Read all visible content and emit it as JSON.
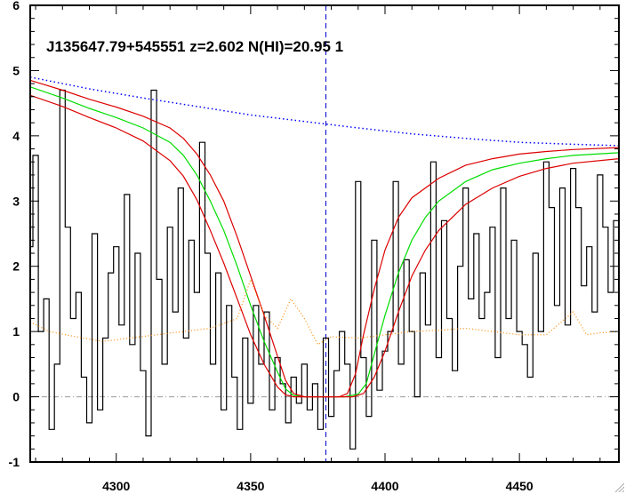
{
  "chart_data": {
    "type": "line",
    "title": "J135647.79+545551 z=2.602 N(HI)=20.95 1",
    "xlabel": "",
    "ylabel": "",
    "xlim": [
      4268,
      4487
    ],
    "ylim": [
      -1,
      6
    ],
    "x_ticks": [
      4300,
      4350,
      4400,
      4450
    ],
    "y_ticks": [
      -1,
      0,
      1,
      2,
      3,
      4,
      5,
      6
    ],
    "grid": false,
    "colors": {
      "flux": "#000000",
      "model": "#00dd00",
      "model_bounds": "#dd0000",
      "continuum": "#0000ff",
      "error": "#ff8800",
      "zero_line": "#999999",
      "center_line": "#0000cc"
    },
    "vertical_line_x": 4378,
    "zero_level": 0,
    "series": [
      {
        "style": "step",
        "values": [
          [
            4268,
            2.3
          ],
          [
            4270,
            3.7
          ],
          [
            4272,
            1.0
          ],
          [
            4274,
            1.5
          ],
          [
            4276,
            -0.5
          ],
          [
            4278,
            0.5
          ],
          [
            4280,
            4.7
          ],
          [
            4282,
            2.6
          ],
          [
            4284,
            1.2
          ],
          [
            4286,
            1.6
          ],
          [
            4288,
            0.3
          ],
          [
            4290,
            -0.4
          ],
          [
            4292,
            2.5
          ],
          [
            4294,
            -0.2
          ],
          [
            4296,
            0.9
          ],
          [
            4298,
            1.9
          ],
          [
            4300,
            2.3
          ],
          [
            4302,
            1.1
          ],
          [
            4304,
            3.1
          ],
          [
            4306,
            0.8
          ],
          [
            4308,
            2.2
          ],
          [
            4310,
            0.4
          ],
          [
            4312,
            -0.6
          ],
          [
            4314,
            4.7
          ],
          [
            4316,
            1.8
          ],
          [
            4318,
            0.5
          ],
          [
            4320,
            2.6
          ],
          [
            4322,
            1.3
          ],
          [
            4324,
            3.2
          ],
          [
            4326,
            0.9
          ],
          [
            4328,
            2.4
          ],
          [
            4330,
            1.6
          ],
          [
            4332,
            3.9
          ],
          [
            4334,
            2.2
          ],
          [
            4336,
            0.5
          ],
          [
            4338,
            1.9
          ],
          [
            4340,
            -0.2
          ],
          [
            4342,
            1.4
          ],
          [
            4344,
            0.3
          ],
          [
            4346,
            -0.5
          ],
          [
            4348,
            0.9
          ],
          [
            4350,
            -0.1
          ],
          [
            4352,
            1.4
          ],
          [
            4354,
            0.5
          ],
          [
            4356,
            1.3
          ],
          [
            4358,
            -0.2
          ],
          [
            4360,
            0.6
          ],
          [
            4362,
            0.2
          ],
          [
            4364,
            -0.4
          ],
          [
            4366,
            0.3
          ],
          [
            4368,
            -0.1
          ],
          [
            4370,
            0.5
          ],
          [
            4372,
            -0.2
          ],
          [
            4374,
            0.2
          ],
          [
            4376,
            -0.5
          ],
          [
            4378,
            0.9
          ],
          [
            4380,
            -0.3
          ],
          [
            4382,
            0.4
          ],
          [
            4384,
            1.0
          ],
          [
            4386,
            0.5
          ],
          [
            4388,
            -0.8
          ],
          [
            4390,
            3.3
          ],
          [
            4392,
            0.6
          ],
          [
            4394,
            -0.3
          ],
          [
            4396,
            2.4
          ],
          [
            4398,
            0.1
          ],
          [
            4400,
            0.7
          ],
          [
            4402,
            1.0
          ],
          [
            4404,
            3.3
          ],
          [
            4406,
            0.5
          ],
          [
            4408,
            2.1
          ],
          [
            4410,
            1.0
          ],
          [
            4412,
            0.0
          ],
          [
            4414,
            1.9
          ],
          [
            4416,
            1.1
          ],
          [
            4418,
            3.6
          ],
          [
            4420,
            0.6
          ],
          [
            4422,
            2.7
          ],
          [
            4424,
            1.2
          ],
          [
            4426,
            0.4
          ],
          [
            4428,
            2.0
          ],
          [
            4430,
            3.2
          ],
          [
            4432,
            1.5
          ],
          [
            4434,
            2.5
          ],
          [
            4436,
            1.2
          ],
          [
            4438,
            1.6
          ],
          [
            4440,
            2.6
          ],
          [
            4442,
            0.6
          ],
          [
            4444,
            3.2
          ],
          [
            4446,
            1.2
          ],
          [
            4448,
            2.4
          ],
          [
            4450,
            1.0
          ],
          [
            4452,
            0.8
          ],
          [
            4454,
            0.3
          ],
          [
            4456,
            2.2
          ],
          [
            4458,
            1.0
          ],
          [
            4460,
            3.6
          ],
          [
            4462,
            2.9
          ],
          [
            4464,
            1.4
          ],
          [
            4466,
            3.2
          ],
          [
            4468,
            1.1
          ],
          [
            4470,
            3.5
          ],
          [
            4472,
            2.9
          ],
          [
            4474,
            1.7
          ],
          [
            4476,
            2.3
          ],
          [
            4478,
            1.3
          ],
          [
            4480,
            3.4
          ],
          [
            4482,
            2.6
          ],
          [
            4484,
            1.6
          ],
          [
            4486,
            2.7
          ]
        ]
      },
      {
        "style": "line",
        "values": [
          [
            4268,
            4.75
          ],
          [
            4280,
            4.58
          ],
          [
            4290,
            4.42
          ],
          [
            4300,
            4.28
          ],
          [
            4310,
            4.12
          ],
          [
            4320,
            3.9
          ],
          [
            4325,
            3.7
          ],
          [
            4330,
            3.4
          ],
          [
            4335,
            3.0
          ],
          [
            4340,
            2.55
          ],
          [
            4345,
            2.0
          ],
          [
            4350,
            1.4
          ],
          [
            4355,
            0.85
          ],
          [
            4360,
            0.38
          ],
          [
            4363,
            0.12
          ],
          [
            4366,
            0.02
          ],
          [
            4370,
            0.0
          ],
          [
            4385,
            0.0
          ],
          [
            4390,
            0.04
          ],
          [
            4393,
            0.2
          ],
          [
            4396,
            0.65
          ],
          [
            4400,
            1.25
          ],
          [
            4405,
            1.9
          ],
          [
            4410,
            2.4
          ],
          [
            4415,
            2.75
          ],
          [
            4420,
            3.0
          ],
          [
            4430,
            3.3
          ],
          [
            4440,
            3.48
          ],
          [
            4450,
            3.58
          ],
          [
            4460,
            3.65
          ],
          [
            4470,
            3.7
          ],
          [
            4487,
            3.74
          ]
        ]
      },
      {
        "style": "line",
        "values": [
          [
            4268,
            4.85
          ],
          [
            4280,
            4.7
          ],
          [
            4290,
            4.56
          ],
          [
            4300,
            4.44
          ],
          [
            4310,
            4.3
          ],
          [
            4320,
            4.12
          ],
          [
            4325,
            3.96
          ],
          [
            4330,
            3.72
          ],
          [
            4335,
            3.4
          ],
          [
            4340,
            3.0
          ],
          [
            4345,
            2.45
          ],
          [
            4350,
            1.85
          ],
          [
            4355,
            1.25
          ],
          [
            4360,
            0.62
          ],
          [
            4363,
            0.25
          ],
          [
            4366,
            0.05
          ],
          [
            4370,
            0.0
          ],
          [
            4383,
            0.0
          ],
          [
            4386,
            0.05
          ],
          [
            4389,
            0.35
          ],
          [
            4392,
            0.95
          ],
          [
            4396,
            1.65
          ],
          [
            4400,
            2.25
          ],
          [
            4405,
            2.75
          ],
          [
            4410,
            3.05
          ],
          [
            4420,
            3.35
          ],
          [
            4430,
            3.55
          ],
          [
            4440,
            3.65
          ],
          [
            4450,
            3.72
          ],
          [
            4460,
            3.76
          ],
          [
            4470,
            3.79
          ],
          [
            4487,
            3.82
          ]
        ]
      },
      {
        "style": "line",
        "values": [
          [
            4268,
            4.62
          ],
          [
            4280,
            4.45
          ],
          [
            4290,
            4.28
          ],
          [
            4300,
            4.12
          ],
          [
            4310,
            3.92
          ],
          [
            4320,
            3.62
          ],
          [
            4325,
            3.38
          ],
          [
            4330,
            3.02
          ],
          [
            4335,
            2.55
          ],
          [
            4340,
            2.05
          ],
          [
            4345,
            1.5
          ],
          [
            4350,
            0.95
          ],
          [
            4355,
            0.5
          ],
          [
            4360,
            0.15
          ],
          [
            4363,
            0.03
          ],
          [
            4366,
            0.0
          ],
          [
            4388,
            0.0
          ],
          [
            4392,
            0.05
          ],
          [
            4396,
            0.3
          ],
          [
            4400,
            0.7
          ],
          [
            4405,
            1.3
          ],
          [
            4410,
            1.85
          ],
          [
            4415,
            2.25
          ],
          [
            4420,
            2.55
          ],
          [
            4430,
            2.95
          ],
          [
            4440,
            3.2
          ],
          [
            4450,
            3.38
          ],
          [
            4460,
            3.5
          ],
          [
            4470,
            3.58
          ],
          [
            4487,
            3.65
          ]
        ]
      },
      {
        "style": "line",
        "values": [
          [
            4268,
            4.9
          ],
          [
            4290,
            4.72
          ],
          [
            4310,
            4.58
          ],
          [
            4330,
            4.45
          ],
          [
            4350,
            4.32
          ],
          [
            4370,
            4.22
          ],
          [
            4390,
            4.12
          ],
          [
            4410,
            4.03
          ],
          [
            4430,
            3.96
          ],
          [
            4450,
            3.9
          ],
          [
            4470,
            3.87
          ],
          [
            4487,
            3.85
          ]
        ]
      },
      {
        "style": "line",
        "values": [
          [
            4268,
            1.15
          ],
          [
            4275,
            1.0
          ],
          [
            4285,
            0.92
          ],
          [
            4295,
            0.85
          ],
          [
            4305,
            0.9
          ],
          [
            4315,
            0.95
          ],
          [
            4325,
            1.0
          ],
          [
            4335,
            1.05
          ],
          [
            4345,
            1.2
          ],
          [
            4350,
            1.8
          ],
          [
            4355,
            1.25
          ],
          [
            4360,
            1.05
          ],
          [
            4365,
            1.5
          ],
          [
            4370,
            1.2
          ],
          [
            4375,
            0.8
          ],
          [
            4380,
            0.92
          ],
          [
            4390,
            0.9
          ],
          [
            4400,
            0.95
          ],
          [
            4410,
            1.0
          ],
          [
            4420,
            1.02
          ],
          [
            4430,
            1.05
          ],
          [
            4440,
            1.0
          ],
          [
            4450,
            0.95
          ],
          [
            4460,
            0.95
          ],
          [
            4470,
            1.3
          ],
          [
            4475,
            0.95
          ],
          [
            4480,
            0.98
          ],
          [
            4487,
            1.0
          ]
        ]
      }
    ]
  }
}
